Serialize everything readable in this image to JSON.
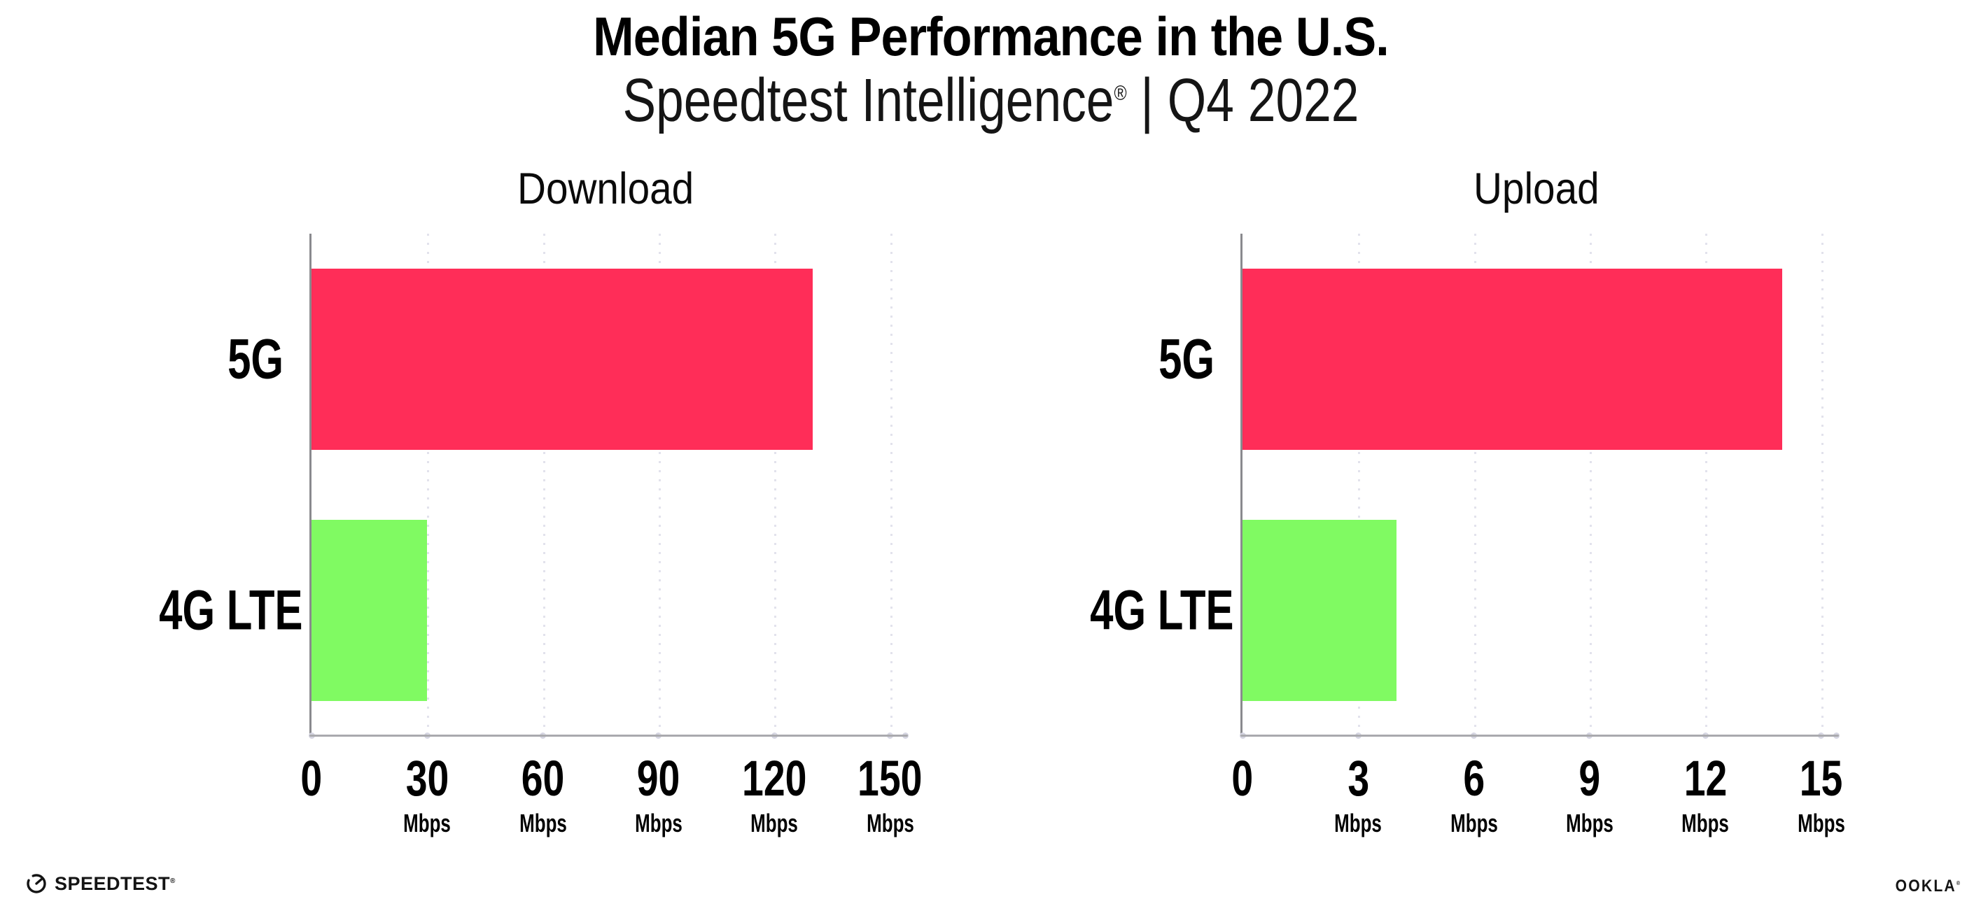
{
  "header": {
    "title": "Median 5G Performance in the U.S.",
    "subtitle_brand": "Speedtest Intelligence",
    "subtitle_reg": "®",
    "subtitle_separator": "|",
    "subtitle_period": "Q4 2022"
  },
  "chart_data": [
    {
      "type": "bar",
      "orientation": "horizontal",
      "title": "Download",
      "categories": [
        "5G",
        "4G LTE"
      ],
      "values": [
        130,
        30
      ],
      "unit": "Mbps",
      "ticks": [
        0,
        30,
        60,
        90,
        120,
        150
      ],
      "xlim": [
        0,
        150
      ],
      "bar_colors": [
        "#ff2d58",
        "#80fa62"
      ],
      "grid": "vertical-dotted",
      "legend": "none"
    },
    {
      "type": "bar",
      "orientation": "horizontal",
      "title": "Upload",
      "categories": [
        "5G",
        "4G LTE"
      ],
      "values": [
        14,
        4
      ],
      "unit": "Mbps",
      "ticks": [
        0,
        3,
        6,
        9,
        12,
        15
      ],
      "xlim": [
        0,
        15
      ],
      "bar_colors": [
        "#ff2d58",
        "#80fa62"
      ],
      "grid": "vertical-dotted",
      "legend": "none"
    }
  ],
  "footer": {
    "speedtest_label": "SPEEDTEST",
    "speedtest_reg": "®",
    "ookla_label": "OOKLA",
    "ookla_reg": "®"
  },
  "colors": {
    "bar_5g": "#ff2d58",
    "bar_4g_lte": "#80fa62",
    "gridline": "#e2e2ec",
    "x_axis_line": "#aaaaae",
    "y_axis_line": "#8a8a8e",
    "text": "#000000",
    "background": "#ffffff"
  }
}
